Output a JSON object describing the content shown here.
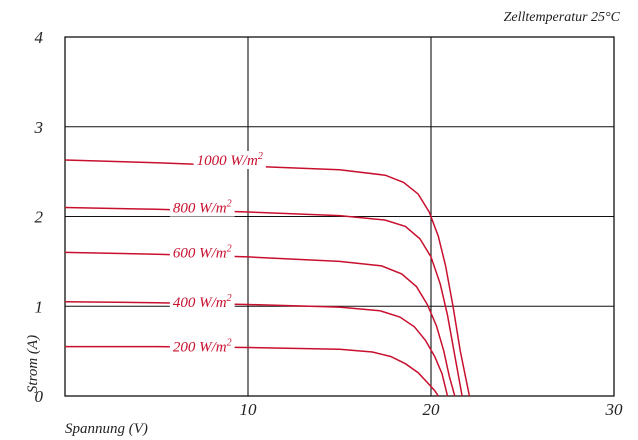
{
  "chart_data": {
    "type": "line",
    "caption": "Zelltemperatur 25°C",
    "xlabel": "Spannung (V)",
    "ylabel": "Strom (A)",
    "xlim": [
      0,
      30
    ],
    "ylim": [
      0,
      4
    ],
    "x_ticks": [
      "10",
      "20",
      "30"
    ],
    "y_ticks": [
      "0",
      "1",
      "2",
      "3",
      "4"
    ],
    "grid": true,
    "line_color": "#c8102e",
    "series": [
      {
        "label_main": "1000 W/m",
        "label_sup": "2",
        "points": [
          [
            0,
            2.63
          ],
          [
            5,
            2.6
          ],
          [
            10,
            2.56
          ],
          [
            15,
            2.52
          ],
          [
            17.5,
            2.46
          ],
          [
            18.5,
            2.38
          ],
          [
            19.3,
            2.25
          ],
          [
            19.9,
            2.05
          ],
          [
            20.4,
            1.78
          ],
          [
            20.8,
            1.45
          ],
          [
            21.2,
            1.0
          ],
          [
            21.6,
            0.5
          ],
          [
            22.1,
            0
          ]
        ]
      },
      {
        "label_main": "800 W/m",
        "label_sup": "2",
        "points": [
          [
            0,
            2.1
          ],
          [
            5,
            2.08
          ],
          [
            10,
            2.05
          ],
          [
            15,
            2.01
          ],
          [
            17.5,
            1.96
          ],
          [
            18.6,
            1.89
          ],
          [
            19.4,
            1.75
          ],
          [
            20.0,
            1.55
          ],
          [
            20.5,
            1.25
          ],
          [
            20.9,
            0.9
          ],
          [
            21.3,
            0.45
          ],
          [
            21.7,
            0
          ]
        ]
      },
      {
        "label_main": "600 W/m",
        "label_sup": "2",
        "points": [
          [
            0,
            1.6
          ],
          [
            5,
            1.58
          ],
          [
            10,
            1.55
          ],
          [
            15,
            1.5
          ],
          [
            17.3,
            1.45
          ],
          [
            18.4,
            1.36
          ],
          [
            19.2,
            1.22
          ],
          [
            19.8,
            1.02
          ],
          [
            20.3,
            0.78
          ],
          [
            20.7,
            0.5
          ],
          [
            21.0,
            0.22
          ],
          [
            21.3,
            0
          ]
        ]
      },
      {
        "label_main": "400 W/m",
        "label_sup": "2",
        "points": [
          [
            0,
            1.05
          ],
          [
            5,
            1.04
          ],
          [
            10,
            1.02
          ],
          [
            15,
            0.99
          ],
          [
            17.2,
            0.95
          ],
          [
            18.3,
            0.88
          ],
          [
            19.1,
            0.77
          ],
          [
            19.7,
            0.62
          ],
          [
            20.2,
            0.44
          ],
          [
            20.6,
            0.25
          ],
          [
            20.9,
            0
          ]
        ]
      },
      {
        "label_main": "200 W/m",
        "label_sup": "2",
        "points": [
          [
            0,
            0.55
          ],
          [
            5,
            0.55
          ],
          [
            10,
            0.54
          ],
          [
            15,
            0.52
          ],
          [
            16.8,
            0.49
          ],
          [
            17.8,
            0.44
          ],
          [
            18.6,
            0.36
          ],
          [
            19.3,
            0.26
          ],
          [
            19.8,
            0.15
          ],
          [
            20.2,
            0.06
          ],
          [
            20.4,
            0
          ]
        ]
      }
    ],
    "label_x": [
      9.0,
      7.5,
      7.5,
      7.5,
      7.5
    ]
  }
}
